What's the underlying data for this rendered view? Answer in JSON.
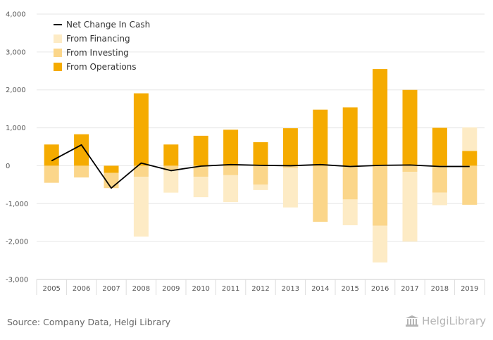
{
  "chart_data": {
    "type": "bar",
    "categories": [
      "2005",
      "2006",
      "2007",
      "2008",
      "2009",
      "2010",
      "2011",
      "2012",
      "2013",
      "2014",
      "2015",
      "2016",
      "2017",
      "2018",
      "2019"
    ],
    "series": [
      {
        "name": "From Operations",
        "kind": "bar",
        "values": [
          560,
          830,
          -190,
          1910,
          560,
          790,
          950,
          620,
          990,
          1480,
          1540,
          2550,
          2000,
          1000,
          390
        ]
      },
      {
        "name": "From Investing",
        "kind": "bar",
        "values": [
          -450,
          -310,
          -400,
          -290,
          -120,
          -290,
          -250,
          -500,
          -60,
          -1480,
          -890,
          -1580,
          -160,
          -710,
          -1030
        ]
      },
      {
        "name": "From Financing",
        "kind": "bar",
        "values": [
          0,
          0,
          0,
          -1580,
          -590,
          -540,
          -710,
          -140,
          -1040,
          0,
          -680,
          -970,
          -1840,
          -330,
          620
        ]
      },
      {
        "name": "Net Change In Cash",
        "kind": "line",
        "values": [
          130,
          550,
          -590,
          70,
          -130,
          -10,
          30,
          10,
          0,
          30,
          -20,
          10,
          20,
          -20,
          -20
        ]
      }
    ],
    "ylim": [
      -3000,
      4000
    ],
    "yticks": [
      "4,000",
      "3,000",
      "2,000",
      "1,000",
      "0",
      "-1,000",
      "-2,000",
      "-3,000"
    ],
    "ytick_values": [
      4000,
      3000,
      2000,
      1000,
      0,
      -1000,
      -2000,
      -3000
    ],
    "grid": true,
    "legend_position": "top-left",
    "legend": [
      "Net Change In Cash",
      "From Financing",
      "From Investing",
      "From Operations"
    ],
    "colors": {
      "From Operations": "#f5ab00",
      "From Investing": "#fbd68a",
      "From Financing": "#fdebc5",
      "Net Change In Cash": "#000000"
    }
  },
  "footer": {
    "source": "Source: Company Data, Helgi Library",
    "brand": "HelgiLibrary"
  }
}
